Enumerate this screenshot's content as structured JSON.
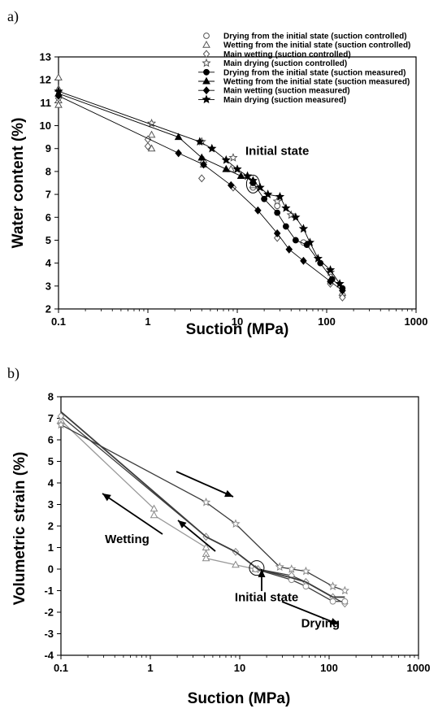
{
  "figure": {
    "panel_a_label": "a)",
    "panel_b_label": "b)"
  },
  "chart_data": [
    {
      "type": "scatter",
      "panel": "a)",
      "xlabel": "Suction (MPa)",
      "ylabel": "Water content (%)",
      "xscale": "log",
      "xlim": [
        0.1,
        1000
      ],
      "ylim": [
        2,
        13
      ],
      "xticks": [
        "0.1",
        "1",
        "10",
        "100",
        "1000"
      ],
      "yticks": [
        "2",
        "3",
        "4",
        "5",
        "6",
        "7",
        "8",
        "9",
        "10",
        "11",
        "12",
        "13"
      ],
      "legend_position": "top-right",
      "annotations": [
        {
          "text": "Initial state",
          "x": 28,
          "y": 8.9
        }
      ],
      "series": [
        {
          "name": "Drying from the initial state (suction controlled)",
          "marker": "circle-open",
          "line": false,
          "points": [
            [
              15,
              7.3
            ],
            [
              28,
              6.5
            ],
            [
              55,
              4.9
            ],
            [
              110,
              3.2
            ],
            [
              150,
              2.6
            ]
          ]
        },
        {
          "name": "Wetting from the initial state (suction controlled)",
          "marker": "triangle-open",
          "line": false,
          "points": [
            [
              0.1,
              12.1
            ],
            [
              0.1,
              11.6
            ],
            [
              0.1,
              11.1
            ],
            [
              0.1,
              10.9
            ],
            [
              1.1,
              9.6
            ],
            [
              1.1,
              9.0
            ],
            [
              4.2,
              8.5
            ],
            [
              4.2,
              8.3
            ],
            [
              8.5,
              8.1
            ],
            [
              15,
              7.4
            ],
            [
              150,
              2.7
            ]
          ]
        },
        {
          "name": "Main wetting (suction controlled)",
          "marker": "diamond-open",
          "line": false,
          "points": [
            [
              0.1,
              11.2
            ],
            [
              1.0,
              9.4
            ],
            [
              1.0,
              9.1
            ],
            [
              4.0,
              7.7
            ],
            [
              9.0,
              7.3
            ],
            [
              28,
              5.1
            ],
            [
              38,
              4.6
            ],
            [
              110,
              3.1
            ],
            [
              150,
              2.5
            ]
          ]
        },
        {
          "name": "Main drying (suction controlled)",
          "marker": "star-open",
          "line": false,
          "points": [
            [
              1.1,
              10.1
            ],
            [
              4.0,
              9.3
            ],
            [
              9.0,
              8.6
            ],
            [
              28,
              6.7
            ],
            [
              40,
              6.1
            ],
            [
              55,
              5.5
            ],
            [
              110,
              3.6
            ]
          ]
        },
        {
          "name": "Drying from the initial state (suction measured)",
          "marker": "circle-filled",
          "line": true,
          "points": [
            [
              15,
              7.5
            ],
            [
              20,
              6.8
            ],
            [
              28,
              6.2
            ],
            [
              35,
              5.6
            ],
            [
              45,
              5.0
            ],
            [
              60,
              4.8
            ],
            [
              85,
              4.0
            ],
            [
              115,
              3.3
            ],
            [
              150,
              2.9
            ]
          ]
        },
        {
          "name": "Wetting from the initial state (suction measured)",
          "marker": "triangle-filled",
          "line": true,
          "points": [
            [
              0.1,
              11.4
            ],
            [
              2.2,
              9.5
            ],
            [
              4.0,
              8.6
            ],
            [
              7.5,
              8.1
            ],
            [
              11,
              7.8
            ],
            [
              15,
              7.6
            ]
          ]
        },
        {
          "name": "Main wetting (suction measured)",
          "marker": "diamond-filled",
          "line": true,
          "points": [
            [
              0.1,
              11.3
            ],
            [
              2.2,
              8.8
            ],
            [
              4.2,
              8.3
            ],
            [
              8.5,
              7.4
            ],
            [
              17,
              6.3
            ],
            [
              28,
              5.3
            ],
            [
              38,
              4.6
            ],
            [
              55,
              4.1
            ],
            [
              110,
              3.2
            ],
            [
              150,
              2.8
            ]
          ]
        },
        {
          "name": "Main drying (suction measured)",
          "marker": "star-filled",
          "line": true,
          "points": [
            [
              0.1,
              11.5
            ],
            [
              3.8,
              9.3
            ],
            [
              5.2,
              9.0
            ],
            [
              7.5,
              8.5
            ],
            [
              10,
              8.1
            ],
            [
              13,
              7.8
            ],
            [
              15,
              7.6
            ],
            [
              18,
              7.3
            ],
            [
              22,
              7.0
            ],
            [
              30,
              6.9
            ],
            [
              35,
              6.4
            ],
            [
              45,
              6.0
            ],
            [
              55,
              5.5
            ],
            [
              65,
              4.9
            ],
            [
              80,
              4.2
            ],
            [
              110,
              3.7
            ],
            [
              140,
              3.1
            ]
          ]
        }
      ]
    },
    {
      "type": "line",
      "panel": "b)",
      "xlabel": "Suction (MPa)",
      "ylabel": "Volumetric strain (%)",
      "xscale": "log",
      "xlim": [
        0.1,
        1000
      ],
      "ylim": [
        -4,
        8
      ],
      "xticks": [
        "0.1",
        "1",
        "10",
        "100",
        "1000"
      ],
      "yticks": [
        "-4",
        "-3",
        "-2",
        "-1",
        "0",
        "1",
        "2",
        "3",
        "4",
        "5",
        "6",
        "7",
        "8"
      ],
      "annotations": [
        {
          "text": "Wetting",
          "x": 0.55,
          "y": 1.4
        },
        {
          "text": "Initial state",
          "x": 20,
          "y": -1.3
        },
        {
          "text": "Drying",
          "x": 80,
          "y": -2.5
        }
      ],
      "series": [
        {
          "marker": "triangle-open",
          "color": "#999999",
          "points": [
            [
              0.1,
              6.9
            ],
            [
              1.1,
              2.8
            ],
            [
              1.1,
              2.5
            ],
            [
              4.2,
              1.0
            ],
            [
              4.2,
              0.7
            ],
            [
              4.2,
              0.5
            ],
            [
              9.0,
              0.2
            ],
            [
              15,
              0.0
            ]
          ]
        },
        {
          "marker": "diamond-open",
          "color": "#3c3c3c",
          "points": [
            [
              0.1,
              7.1
            ],
            [
              4.2,
              1.5
            ],
            [
              9.0,
              0.8
            ],
            [
              16,
              0.0
            ],
            [
              38,
              -0.3
            ],
            [
              55,
              -0.6
            ],
            [
              110,
              -1.3
            ],
            [
              150,
              -1.6
            ]
          ]
        },
        {
          "marker": "circle-open",
          "color": "#3c3c3c",
          "points": [
            [
              15,
              0.0
            ],
            [
              38,
              -0.5
            ],
            [
              55,
              -0.8
            ],
            [
              110,
              -1.5
            ],
            [
              150,
              -1.5
            ]
          ]
        },
        {
          "marker": "star-open",
          "color": "#3c3c3c",
          "points": [
            [
              0.1,
              6.7
            ],
            [
              4.2,
              3.1
            ],
            [
              9.0,
              2.1
            ],
            [
              28,
              0.1
            ],
            [
              38,
              0.0
            ],
            [
              55,
              -0.1
            ],
            [
              110,
              -0.8
            ],
            [
              150,
              -1.0
            ]
          ]
        },
        {
          "marker": "none",
          "color": "#3c3c3c",
          "points": [
            [
              0.1,
              7.3
            ],
            [
              4.2,
              1.5
            ],
            [
              9.0,
              0.8
            ],
            [
              16,
              0.0
            ],
            [
              38,
              -0.4
            ],
            [
              55,
              -0.6
            ],
            [
              110,
              -1.3
            ],
            [
              150,
              -1.3
            ]
          ]
        }
      ]
    }
  ]
}
